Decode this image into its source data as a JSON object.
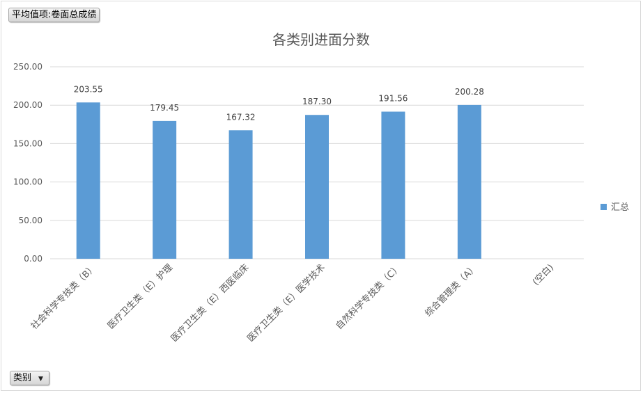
{
  "pivot": {
    "value_field_label": "平均值项:卷面总成绩",
    "category_field_label": "类别",
    "category_dropdown_icon": "chevron-down-icon"
  },
  "colors": {
    "bar": "#5b9bd5",
    "gridline": "#d9d9d9",
    "axis_text": "#595959",
    "title_text": "#595959"
  },
  "chart_data": {
    "type": "bar",
    "title": "各类别进面分数",
    "categories": [
      "社会科学专技类（B）",
      "医疗卫生类（E）护理",
      "医疗卫生类（E）西医临床",
      "医疗卫生类（E）医学技术",
      "自然科学专技类（C）",
      "综合管理类（A）",
      "(空白)"
    ],
    "series": [
      {
        "name": "汇总",
        "values": [
          203.55,
          179.45,
          167.32,
          187.3,
          191.56,
          200.28,
          null
        ],
        "data_labels": [
          "203.55",
          "179.45",
          "167.32",
          "187.30",
          "191.56",
          "200.28",
          ""
        ]
      }
    ],
    "y_ticks": [
      "0.00",
      "50.00",
      "100.00",
      "150.00",
      "200.00",
      "250.00"
    ],
    "ylim": [
      0,
      250
    ],
    "grid": true,
    "legend_position": "right"
  }
}
